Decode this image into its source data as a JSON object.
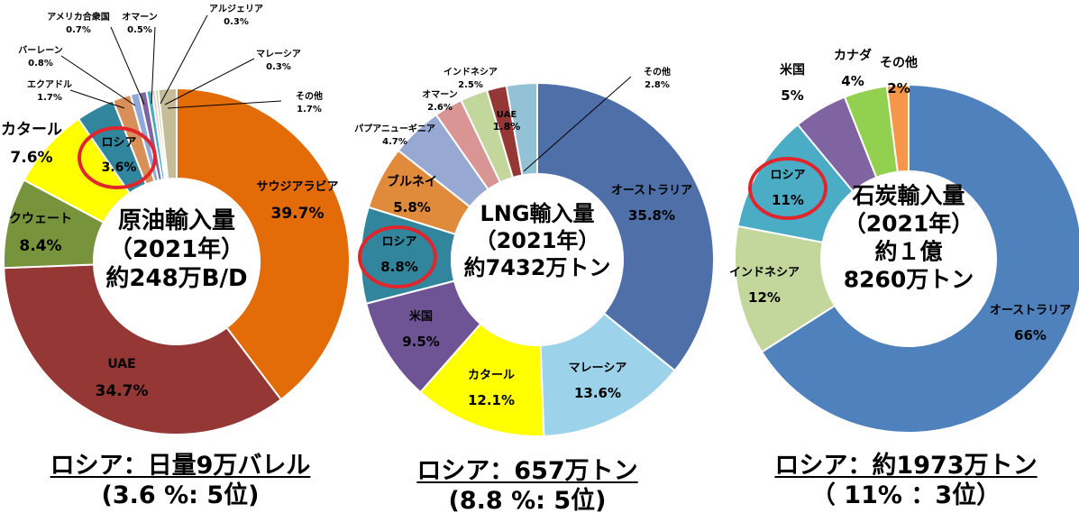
{
  "chart_data": [
    {
      "type": "donut",
      "center_title": [
        "原油輸入量",
        "（2021年）",
        "約248万B/D"
      ],
      "caption": [
        "ロシア：日量9万バレル",
        "(3.6 %:  5位)"
      ],
      "highlight": "ロシア",
      "slices": [
        {
          "name": "サウジアラビア",
          "label": "サウジアラビア",
          "pct_label": "39.7%",
          "value": 39.7,
          "color": "#E36C09"
        },
        {
          "name": "UAE",
          "label": "UAE",
          "pct_label": "34.7%",
          "value": 34.7,
          "color": "#953735"
        },
        {
          "name": "クウェート",
          "label": "クウェート",
          "pct_label": "8.4%",
          "value": 8.4,
          "color": "#77933C"
        },
        {
          "name": "カタール",
          "label": "カタール",
          "pct_label": "7.6%",
          "value": 7.6,
          "color": "#FFFF00"
        },
        {
          "name": "ロシア",
          "label": "ロシア",
          "pct_label": "3.6%",
          "value": 3.6,
          "color": "#31859C"
        },
        {
          "name": "エクアドル",
          "label": "エクアドル",
          "pct_label": "1.7%",
          "value": 1.7,
          "color": "#D99058"
        },
        {
          "name": "バーレーン",
          "label": "バーレーン",
          "pct_label": "0.8%",
          "value": 0.8,
          "color": "#8EA9DB"
        },
        {
          "name": "アメリカ合衆国",
          "label": "アメリカ合衆国",
          "pct_label": "0.7%",
          "value": 0.7,
          "color": "#8064A2"
        },
        {
          "name": "オマーン",
          "label": "オマーン",
          "pct_label": "0.5%",
          "value": 0.5,
          "color": "#4BACC6"
        },
        {
          "name": "アルジェリア",
          "label": "アルジェリア",
          "pct_label": "0.3%",
          "value": 0.3,
          "color": "#E6B9B8"
        },
        {
          "name": "マレーシア",
          "label": "マレーシア",
          "pct_label": "0.3%",
          "value": 0.3,
          "color": "#C3D69B"
        },
        {
          "name": "その他",
          "label": "その他",
          "pct_label": "1.7%",
          "value": 1.7,
          "color": "#C4BD97"
        }
      ]
    },
    {
      "type": "donut",
      "center_title": [
        "LNG輸入量",
        "（2021年）",
        "約7432万トン"
      ],
      "caption": [
        "ロシア：657万トン",
        "(8.8 %:  5位)"
      ],
      "highlight": "ロシア",
      "slices": [
        {
          "name": "オーストラリア",
          "label": "オーストラリア",
          "pct_label": "35.8%",
          "value": 35.8,
          "color": "#4F6FA8"
        },
        {
          "name": "マレーシア",
          "label": "マレーシア",
          "pct_label": "13.6%",
          "value": 13.6,
          "color": "#9DD3EA"
        },
        {
          "name": "カタール",
          "label": "カタール",
          "pct_label": "12.1%",
          "value": 12.1,
          "color": "#FFFF00"
        },
        {
          "name": "米国",
          "label": "米国",
          "pct_label": "9.5%",
          "value": 9.5,
          "color": "#6F5495"
        },
        {
          "name": "ロシア",
          "label": "ロシア",
          "pct_label": "8.8%",
          "value": 8.8,
          "color": "#31859C"
        },
        {
          "name": "ブルネイ",
          "label": "ブルネイ",
          "pct_label": "5.8%",
          "value": 5.8,
          "color": "#E08B3C"
        },
        {
          "name": "パプアニューギニア",
          "label": "パプアニューギニア",
          "pct_label": "4.7%",
          "value": 4.7,
          "color": "#97A9D3"
        },
        {
          "name": "オマーン",
          "label": "オマーン",
          "pct_label": "2.6%",
          "value": 2.6,
          "color": "#D99594"
        },
        {
          "name": "インドネシア",
          "label": "インドネシア",
          "pct_label": "2.5%",
          "value": 2.5,
          "color": "#C3D69B"
        },
        {
          "name": "UAE",
          "label": "UAE",
          "pct_label": "1.8%",
          "value": 1.8,
          "color": "#953735"
        },
        {
          "name": "その他",
          "label": "その他",
          "pct_label": "2.8%",
          "value": 2.8,
          "color": "#93C2D6"
        }
      ]
    },
    {
      "type": "donut",
      "center_title": [
        "石炭輸入量",
        "（2021年）",
        "約１億",
        "8260万トン"
      ],
      "caption": [
        "ロシア：約1973万トン",
        "（ 11%  ：3位）"
      ],
      "highlight": "ロシア",
      "slices": [
        {
          "name": "オーストラリア",
          "label": "オーストラリア",
          "pct_label": "66%",
          "value": 66,
          "color": "#4F81BD"
        },
        {
          "name": "インドネシア",
          "label": "インドネシア",
          "pct_label": "12%",
          "value": 12,
          "color": "#C3D69B"
        },
        {
          "name": "ロシア",
          "label": "ロシア",
          "pct_label": "11%",
          "value": 11,
          "color": "#4BACC6"
        },
        {
          "name": "米国",
          "label": "米国",
          "pct_label": "5%",
          "value": 5,
          "color": "#8064A2"
        },
        {
          "name": "カナダ",
          "label": "カナダ",
          "pct_label": "4%",
          "value": 4,
          "color": "#92D050"
        },
        {
          "name": "その他",
          "label": "その他",
          "pct_label": "2%",
          "value": 2,
          "color": "#F79646"
        }
      ]
    }
  ]
}
